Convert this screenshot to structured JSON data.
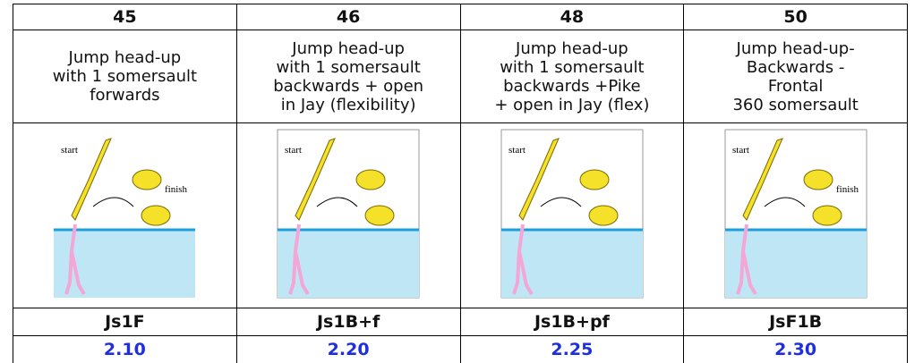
{
  "table": {
    "columns": [
      {
        "number": "45",
        "description": [
          "Jump head-up",
          "with 1 somersault",
          "forwards"
        ],
        "image_labels": [
          "start",
          "finish"
        ],
        "code": "Js1F",
        "value": "2.10"
      },
      {
        "number": "46",
        "description": [
          "Jump head-up",
          "with 1 somersault",
          "backwards + open",
          "in Jay (flexibility)"
        ],
        "image_labels": [
          "start"
        ],
        "code": "Js1B+f",
        "value": "2.20"
      },
      {
        "number": "48",
        "description": [
          "Jump head-up",
          "with 1 somersault",
          "backwards +Pike",
          "+ open in Jay (flex)"
        ],
        "image_labels": [
          "start"
        ],
        "code": "Js1B+pf",
        "value": "2.25"
      },
      {
        "number": "50",
        "description": [
          "Jump head-up-",
          "Backwards -",
          "Frontal",
          "360 somersault"
        ],
        "image_labels": [
          "start",
          "finish"
        ],
        "code": "JsF1B",
        "value": "2.30"
      }
    ]
  }
}
